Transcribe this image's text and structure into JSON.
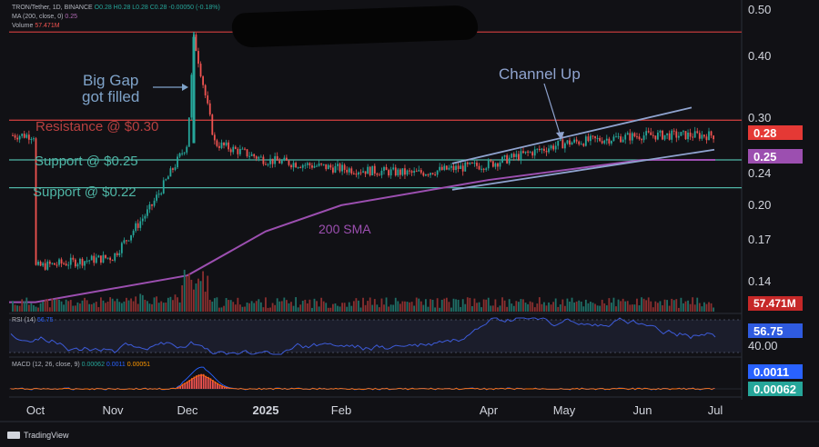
{
  "header": {
    "symbol_line": "TRON/Tether, 1D, BINANCE",
    "ohlc": "O0.28 H0.28 L0.28 C0.28 -0.00050 (-0.18%)",
    "ma_line": "MA (200, close, 0)",
    "ma_value": "0.25",
    "volume_label": "Volume",
    "volume_value": "57.471M",
    "rsi_label": "RSI (14)",
    "rsi_value": "56.75",
    "macd_label": "MACD (12, 26, close, 9)",
    "macd_v1": "0.00062",
    "macd_v2": "0.0011",
    "macd_v3": "0.00051"
  },
  "annotations": {
    "big_gap": "Big Gap\ngot filled",
    "channel_up": "Channel Up",
    "resistance": "Resistance @ $0.30",
    "support_025": "Support @ $0.25",
    "support_022": "Support @ $0.22",
    "sma": "200 SMA"
  },
  "price_tags": {
    "price": "0.28",
    "ma": "0.25",
    "volume": "57.471M",
    "rsi": "56.75",
    "rsi_level": "40.00",
    "macd_a": "0.0011",
    "macd_b": "0.00062"
  },
  "price_axis_labels": [
    "0.50",
    "0.40",
    "0.30",
    "0.24",
    "0.20",
    "0.17",
    "0.14"
  ],
  "colors": {
    "up": "#26a69a",
    "down": "#ef5350",
    "sma": "#9c4fb0",
    "support": "#4fb6a6",
    "resistance": "#c23b3b",
    "channel": "#8fa3cf",
    "rsi": "#3d5bd9",
    "macd": "#2962ff",
    "signal": "#ff6d00"
  },
  "footer": {
    "brand": "TradingView"
  },
  "chart_data": {
    "type": "candlestick",
    "title": "TRON/Tether, 1D, BINANCE",
    "x_months": [
      "Oct",
      "Nov",
      "Dec",
      "2025",
      "Feb",
      "Apr",
      "May",
      "Jun",
      "Jul"
    ],
    "y_scale": "log",
    "ylim": [
      0.125,
      0.5
    ],
    "levels": {
      "resistance": 0.3,
      "support_1": 0.25,
      "support_2": 0.22,
      "top_line": 0.45
    },
    "price_path": [
      {
        "month": "Oct",
        "close": 0.153
      },
      {
        "month": "Nov",
        "close": 0.16
      },
      {
        "month": "Nov-late",
        "close": 0.2
      },
      {
        "month": "Dec",
        "close": 0.27
      },
      {
        "month": "Dec-spike",
        "close": 0.44
      },
      {
        "month": "Dec-late",
        "close": 0.27
      },
      {
        "month": "2025",
        "close": 0.25
      },
      {
        "month": "Feb",
        "close": 0.24
      },
      {
        "month": "Mar",
        "close": 0.235
      },
      {
        "month": "Apr",
        "close": 0.245
      },
      {
        "month": "May",
        "close": 0.27
      },
      {
        "month": "Jun",
        "close": 0.28
      },
      {
        "month": "Jul",
        "close": 0.28
      }
    ],
    "sma_200_path": [
      {
        "month": "Oct",
        "value": 0.13
      },
      {
        "month": "Dec",
        "value": 0.147
      },
      {
        "month": "2025",
        "value": 0.18
      },
      {
        "month": "Feb",
        "value": 0.203
      },
      {
        "month": "Apr",
        "value": 0.228
      },
      {
        "month": "Jun",
        "value": 0.25
      },
      {
        "month": "Jul",
        "value": 0.25
      }
    ],
    "last": {
      "price": 0.28,
      "volume": "57.471M",
      "rsi": 56.75,
      "macd": 0.00062,
      "signal": 0.0011
    }
  }
}
